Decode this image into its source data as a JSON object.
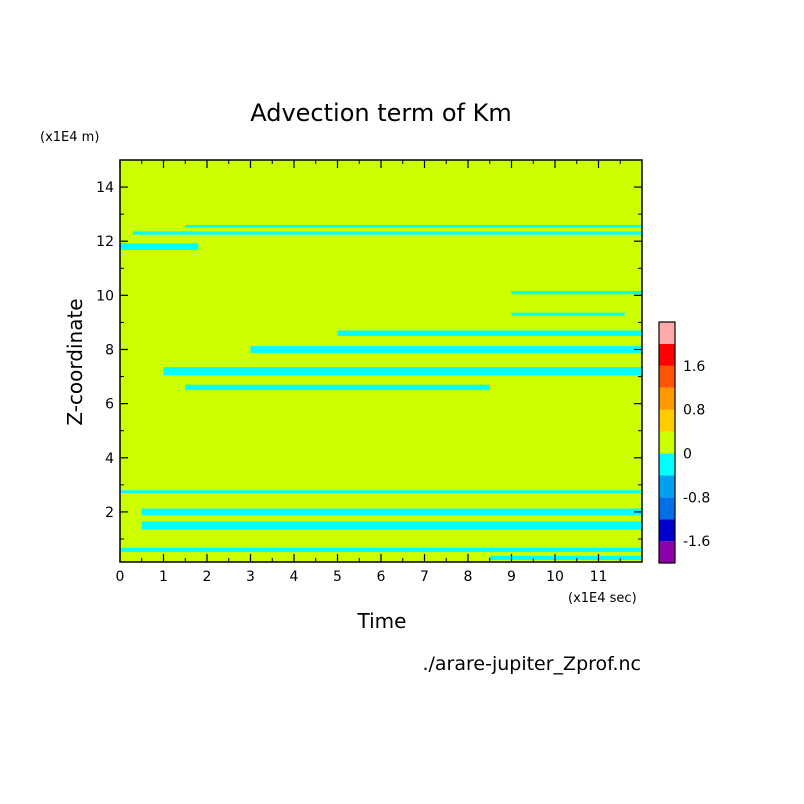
{
  "chart_data": {
    "type": "heatmap",
    "title": "Advection term of Km",
    "xlabel": "Time",
    "ylabel": "Z-coordinate",
    "x_unit": "(x1E4 sec)",
    "y_unit": "(x1E4 m)",
    "xlim": [
      0,
      12
    ],
    "ylim": [
      0.15,
      15
    ],
    "x_ticks": [
      "0",
      "1",
      "2",
      "3",
      "4",
      "5",
      "6",
      "7",
      "8",
      "9",
      "10",
      "11"
    ],
    "y_ticks": [
      "2",
      "4",
      "6",
      "8",
      "10",
      "12",
      "14"
    ],
    "background_level": 0,
    "negative_level": -0.4,
    "levels": [
      {
        "bin": [
          -2.0,
          -1.6
        ],
        "color": "#8b00a8"
      },
      {
        "bin": [
          -1.6,
          -1.2
        ],
        "color": "#0000cc"
      },
      {
        "bin": [
          -1.2,
          -0.8
        ],
        "color": "#0070e8"
      },
      {
        "bin": [
          -0.8,
          -0.4
        ],
        "color": "#00a0f0"
      },
      {
        "bin": [
          -0.4,
          0.0
        ],
        "color": "#00ffff"
      },
      {
        "bin": [
          0.0,
          0.4
        ],
        "color": "#ccff00"
      },
      {
        "bin": [
          0.4,
          0.8
        ],
        "color": "#ffcc00"
      },
      {
        "bin": [
          0.8,
          1.2
        ],
        "color": "#ff9900"
      },
      {
        "bin": [
          1.2,
          1.6
        ],
        "color": "#ff5500"
      },
      {
        "bin": [
          1.6,
          2.0
        ],
        "color": "#ff0000"
      },
      {
        "bin": [
          2.0,
          2.4
        ],
        "color": "#ffaaaa"
      }
    ],
    "colorbar_ticks": [
      "1.6",
      "0.8",
      "0",
      "-0.8",
      "-1.6"
    ],
    "negative_regions": [
      {
        "z": 12.3,
        "x": [
          0.3,
          12.0
        ],
        "thickness": 0.12
      },
      {
        "z": 12.55,
        "x": [
          1.5,
          12.0
        ],
        "thickness": 0.1
      },
      {
        "z": 11.8,
        "x": [
          0.0,
          1.8
        ],
        "thickness": 0.25
      },
      {
        "z": 10.1,
        "x": [
          9.0,
          12.0
        ],
        "thickness": 0.12
      },
      {
        "z": 9.3,
        "x": [
          9.0,
          11.6
        ],
        "thickness": 0.12
      },
      {
        "z": 8.6,
        "x": [
          5.0,
          12.0
        ],
        "thickness": 0.2
      },
      {
        "z": 8.0,
        "x": [
          3.0,
          12.0
        ],
        "thickness": 0.25
      },
      {
        "z": 7.2,
        "x": [
          1.0,
          12.0
        ],
        "thickness": 0.3
      },
      {
        "z": 6.6,
        "x": [
          1.5,
          8.5
        ],
        "thickness": 0.2
      },
      {
        "z": 2.75,
        "x": [
          0.0,
          12.0
        ],
        "thickness": 0.1
      },
      {
        "z": 2.0,
        "x": [
          0.5,
          12.0
        ],
        "thickness": 0.25
      },
      {
        "z": 1.5,
        "x": [
          0.5,
          12.0
        ],
        "thickness": 0.3
      },
      {
        "z": 0.6,
        "x": [
          0.0,
          12.0
        ],
        "thickness": 0.15
      },
      {
        "z": 0.3,
        "x": [
          8.5,
          12.0
        ],
        "thickness": 0.15
      }
    ],
    "grid": false,
    "legend": "right colorbar"
  },
  "footer": {
    "source_file": "./arare-jupiter_Zprof.nc"
  }
}
